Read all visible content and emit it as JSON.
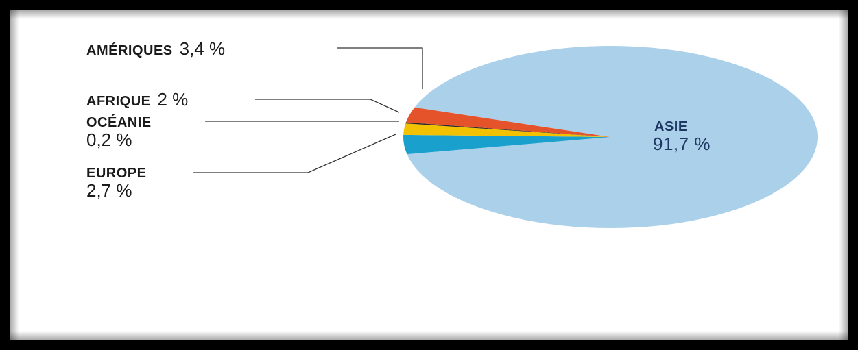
{
  "chart_data": {
    "type": "pie",
    "title": "",
    "slices": [
      {
        "label": "ASIE",
        "value_text": "91,7 %",
        "value": 91.7,
        "color": "#abd0ea"
      },
      {
        "label": "AMÉRIQUES",
        "value_text": "3,4 %",
        "value": 3.4,
        "color": "#1aa0cc"
      },
      {
        "label": "AFRIQUE",
        "value_text": "2 %",
        "value": 2,
        "color": "#f2c200"
      },
      {
        "label": "OCÉANIE",
        "value_text": "0,2 %",
        "value": 0.2,
        "color": "#2a2a2a"
      },
      {
        "label": "EUROPE",
        "value_text": "2,7 %",
        "value": 2.7,
        "color": "#e5532a"
      }
    ]
  }
}
